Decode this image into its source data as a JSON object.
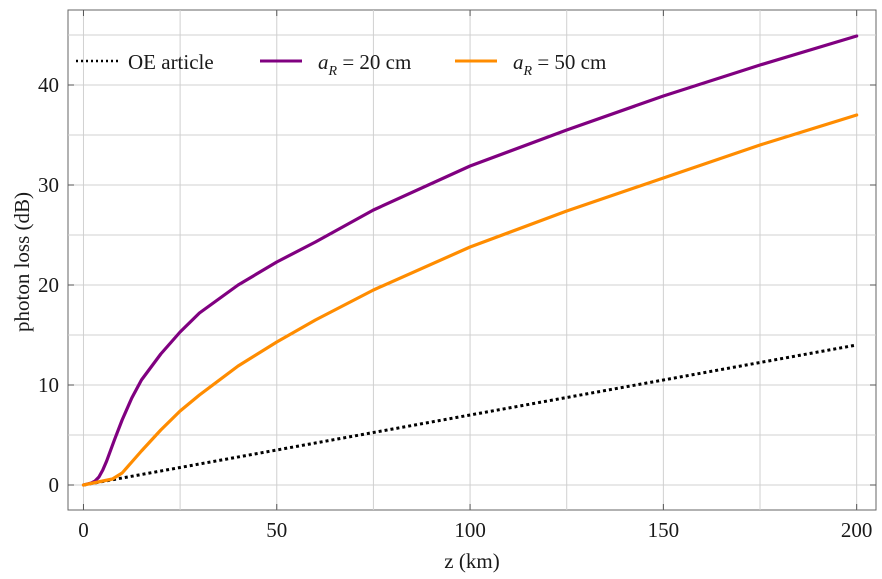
{
  "chart_data": {
    "type": "line",
    "xlabel": "z   (km)",
    "ylabel": "photon  loss  (dB)",
    "xlim": [
      -4,
      205
    ],
    "ylim": [
      -2.5,
      47.5
    ],
    "xticks": [
      0,
      50,
      100,
      150,
      200
    ],
    "yticks": [
      0,
      10,
      20,
      30,
      40
    ],
    "grid": true,
    "legend_position": "top-left",
    "series": [
      {
        "name": "OE article",
        "color": "#000000",
        "style": "dotted",
        "x": [
          0,
          200
        ],
        "y": [
          0,
          14.0
        ]
      },
      {
        "name": "a_R = 20 cm",
        "color": "#800080",
        "style": "solid",
        "x": [
          0,
          2,
          3,
          4,
          5,
          6,
          8,
          10,
          12.5,
          15,
          20,
          25,
          30,
          40,
          50,
          60,
          75,
          100,
          125,
          150,
          175,
          200
        ],
        "y": [
          0,
          0.2,
          0.4,
          0.8,
          1.5,
          2.4,
          4.5,
          6.5,
          8.7,
          10.5,
          13.1,
          15.3,
          17.2,
          20.0,
          22.3,
          24.3,
          27.5,
          31.9,
          35.5,
          38.9,
          42.0,
          44.9
        ]
      },
      {
        "name": "a_R = 50 cm",
        "color": "#FF8C00",
        "style": "solid",
        "x": [
          0,
          2.5,
          5,
          7.5,
          10,
          12.5,
          15,
          20,
          25,
          30,
          40,
          50,
          60,
          75,
          100,
          125,
          150,
          175,
          200
        ],
        "y": [
          0,
          0.2,
          0.4,
          0.6,
          1.2,
          2.3,
          3.4,
          5.5,
          7.4,
          9.0,
          11.9,
          14.3,
          16.5,
          19.5,
          23.8,
          27.4,
          30.7,
          34.0,
          37.0
        ]
      }
    ]
  }
}
